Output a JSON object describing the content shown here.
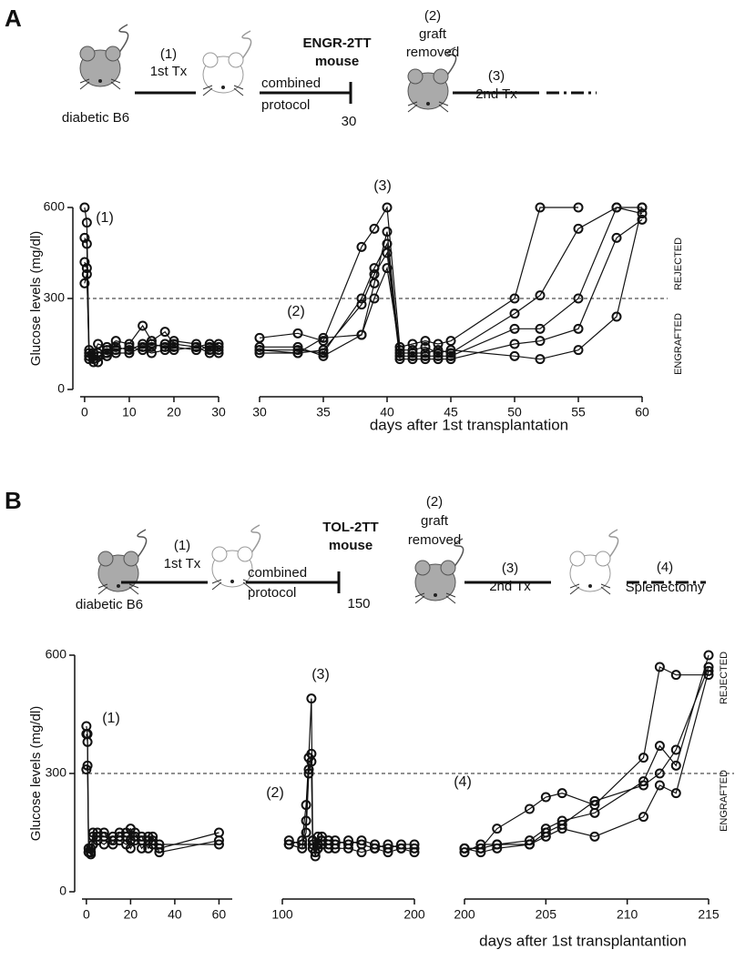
{
  "panels": [
    {
      "label": "A",
      "schema": [
        "(1)",
        "1st Tx",
        "diabetic B6",
        "ENGR-2TT",
        "mouse",
        "combined",
        "protocol",
        "30",
        "(2)",
        "graft",
        "removed",
        "(3)",
        "2nd Tx"
      ],
      "threshold": 300,
      "side_labels": [
        "REJECTED",
        "ENGRAFTED"
      ]
    },
    {
      "label": "B",
      "schema": [
        "(1)",
        "1st Tx",
        "diabetic B6",
        "TOL-2TT",
        "mouse",
        "combined",
        "protocol",
        "150",
        "(2)",
        "graft",
        "removed",
        "(3)",
        "2nd Tx",
        "(4)",
        "Splenectomy"
      ],
      "threshold": 300,
      "side_labels": [
        "REJECTED",
        "ENGRAFTED"
      ]
    }
  ],
  "chart_data": [
    {
      "type": "line",
      "ylabel": "Glucose  levels (mg/dl)",
      "annotations": [
        "(1)"
      ],
      "xlim": [
        -1,
        30
      ],
      "xticks": [
        0,
        10,
        20,
        30
      ],
      "ylim": [
        0,
        600
      ],
      "yticks": [
        0,
        300,
        600
      ],
      "x": [
        0,
        0.5,
        1,
        2,
        3,
        5,
        7,
        10,
        13,
        15,
        18,
        20,
        25,
        28,
        30
      ],
      "series": [
        {
          "values": [
            600,
            550,
            130,
            120,
            150,
            140,
            160,
            150,
            210,
            160,
            190,
            150,
            140,
            150,
            140
          ]
        },
        {
          "values": [
            500,
            480,
            110,
            100,
            120,
            130,
            140,
            130,
            150,
            140,
            150,
            140,
            130,
            140,
            150
          ]
        },
        {
          "values": [
            420,
            400,
            100,
            90,
            110,
            120,
            130,
            140,
            130,
            120,
            130,
            160,
            150,
            130,
            130
          ]
        },
        {
          "values": [
            350,
            380,
            120,
            110,
            90,
            110,
            120,
            120,
            140,
            150,
            140,
            130,
            140,
            120,
            120
          ]
        }
      ]
    },
    {
      "type": "line",
      "xlabel": "days after 1st transplantation",
      "annotations": [
        "(2)",
        "(3)"
      ],
      "xlim": [
        30,
        60
      ],
      "xticks": [
        30,
        35,
        40,
        45,
        50,
        55,
        60
      ],
      "ylim": [
        0,
        600
      ],
      "x": [
        30,
        33,
        35,
        38,
        39,
        40,
        41,
        42,
        43,
        44,
        45,
        50,
        52,
        55,
        58,
        60
      ],
      "series": [
        {
          "values": [
            170,
            185,
            160,
            470,
            530,
            600,
            140,
            150,
            160,
            150,
            160,
            300,
            600,
            600,
            null,
            null
          ]
        },
        {
          "values": [
            130,
            130,
            120,
            300,
            400,
            480,
            120,
            120,
            120,
            130,
            120,
            250,
            310,
            530,
            600,
            600
          ]
        },
        {
          "values": [
            140,
            140,
            110,
            180,
            350,
            520,
            110,
            110,
            110,
            110,
            110,
            200,
            200,
            300,
            600,
            580
          ]
        },
        {
          "values": [
            120,
            120,
            130,
            280,
            380,
            450,
            100,
            100,
            100,
            100,
            100,
            150,
            160,
            200,
            500,
            560
          ]
        },
        {
          "values": [
            130,
            120,
            170,
            180,
            300,
            400,
            130,
            130,
            140,
            120,
            130,
            110,
            100,
            130,
            240,
            600
          ]
        }
      ]
    },
    {
      "type": "line",
      "ylabel": "Glucose  levels (mg/dl)",
      "annotations": [
        "(1)"
      ],
      "xlim": [
        -2,
        66
      ],
      "xticks": [
        0,
        20,
        40,
        60
      ],
      "ylim": [
        0,
        600
      ],
      "yticks": [
        0,
        300,
        600
      ],
      "x": [
        0,
        0.5,
        1,
        2,
        3,
        5,
        8,
        12,
        15,
        18,
        20,
        22,
        25,
        28,
        30,
        33,
        60
      ],
      "series": [
        {
          "values": [
            420,
            400,
            110,
            100,
            150,
            150,
            140,
            130,
            140,
            150,
            160,
            140,
            130,
            140,
            120,
            110,
            150
          ]
        },
        {
          "values": [
            400,
            380,
            100,
            95,
            140,
            130,
            120,
            140,
            130,
            120,
            130,
            150,
            110,
            130,
            140,
            100,
            130
          ]
        },
        {
          "values": [
            310,
            320,
            100,
            110,
            120,
            140,
            150,
            120,
            150,
            140,
            110,
            130,
            140,
            110,
            130,
            120,
            120
          ]
        }
      ]
    },
    {
      "type": "line",
      "annotations": [
        "(2)",
        "(3)"
      ],
      "xlim": [
        100,
        200
      ],
      "xticks": [
        100,
        200
      ],
      "ylim": [
        0,
        600
      ],
      "x": [
        105,
        115,
        118,
        120,
        122,
        123,
        125,
        127,
        130,
        135,
        140,
        150,
        160,
        170,
        180,
        190,
        200
      ],
      "series": [
        {
          "values": [
            120,
            130,
            220,
            340,
            490,
            130,
            100,
            140,
            140,
            130,
            120,
            130,
            120,
            110,
            120,
            110,
            100
          ]
        },
        {
          "values": [
            120,
            110,
            180,
            310,
            350,
            120,
            90,
            120,
            130,
            120,
            130,
            120,
            130,
            120,
            110,
            120,
            120
          ]
        },
        {
          "values": [
            130,
            120,
            150,
            300,
            330,
            110,
            100,
            110,
            120,
            110,
            110,
            110,
            100,
            110,
            100,
            110,
            110
          ]
        }
      ]
    },
    {
      "type": "line",
      "xlabel": "days after 1st transplantantion",
      "annotations": [
        "(4)"
      ],
      "xlim": [
        200,
        215
      ],
      "xticks": [
        200,
        205,
        210,
        215
      ],
      "ylim": [
        0,
        600
      ],
      "x": [
        200,
        201,
        202,
        204,
        205,
        206,
        208,
        211,
        212,
        213,
        215
      ],
      "series": [
        {
          "values": [
            110,
            110,
            160,
            210,
            240,
            250,
            220,
            340,
            570,
            550,
            550
          ]
        },
        {
          "values": [
            100,
            120,
            120,
            130,
            160,
            180,
            200,
            280,
            370,
            320,
            600
          ]
        },
        {
          "values": [
            110,
            110,
            120,
            120,
            150,
            170,
            230,
            270,
            300,
            360,
            570
          ]
        },
        {
          "values": [
            110,
            100,
            110,
            120,
            140,
            160,
            140,
            190,
            270,
            250,
            560
          ]
        }
      ]
    }
  ]
}
